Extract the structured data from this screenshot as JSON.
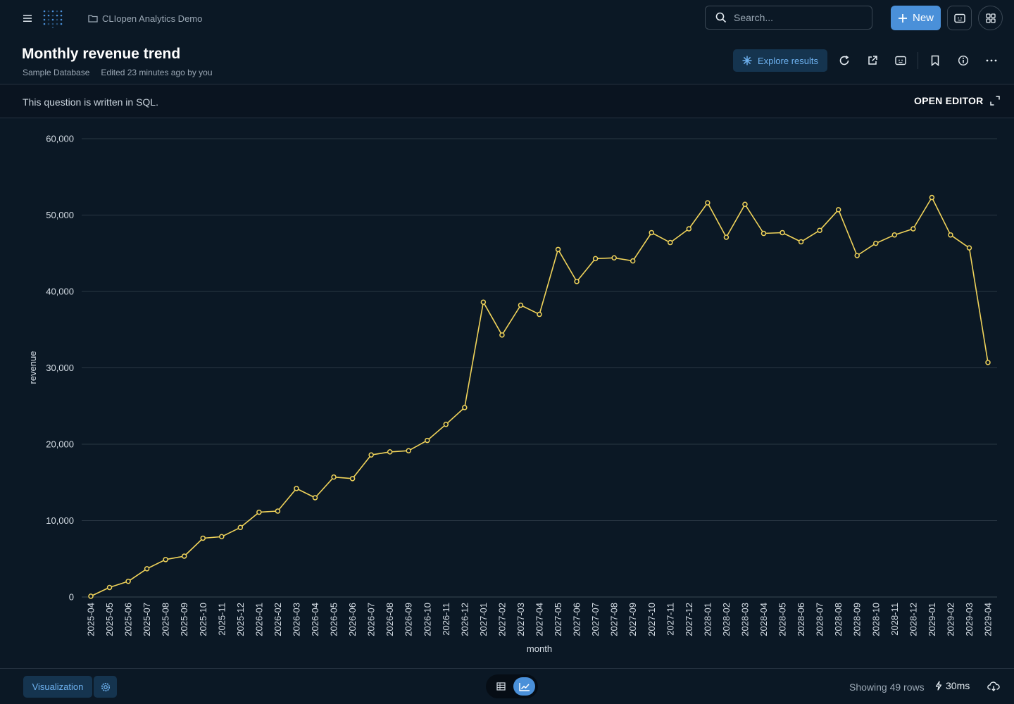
{
  "topbar": {
    "collection": "CLIopen Analytics Demo",
    "search_placeholder": "Search...",
    "new_label": "New"
  },
  "header": {
    "title": "Monthly revenue trend",
    "database": "Sample Database",
    "edited": "Edited 23 minutes ago by you",
    "explore_label": "Explore results"
  },
  "sql_bar": {
    "message": "This question is written in SQL.",
    "open_editor": "OPEN EDITOR"
  },
  "footer": {
    "visualization_label": "Visualization",
    "rows_text": "Showing 49 rows",
    "timing": "30ms"
  },
  "colors": {
    "line": "#f0d35a",
    "accent": "#4a90d9",
    "background": "#0b1825"
  },
  "chart_data": {
    "type": "line",
    "xlabel": "month",
    "ylabel": "revenue",
    "ylim": [
      0,
      60000
    ],
    "yticks": [
      0,
      10000,
      20000,
      30000,
      40000,
      50000,
      60000
    ],
    "ytick_labels": [
      "0",
      "10,000",
      "20,000",
      "30,000",
      "40,000",
      "50,000",
      "60,000"
    ],
    "grid": true,
    "categories": [
      "2025-04",
      "2025-05",
      "2025-06",
      "2025-07",
      "2025-08",
      "2025-09",
      "2025-10",
      "2025-11",
      "2025-12",
      "2026-01",
      "2026-02",
      "2026-03",
      "2026-04",
      "2026-05",
      "2026-06",
      "2026-07",
      "2026-08",
      "2026-09",
      "2026-10",
      "2026-11",
      "2026-12",
      "2027-01",
      "2027-02",
      "2027-03",
      "2027-04",
      "2027-05",
      "2027-06",
      "2027-07",
      "2027-08",
      "2027-09",
      "2027-10",
      "2027-11",
      "2027-12",
      "2028-01",
      "2028-02",
      "2028-03",
      "2028-04",
      "2028-05",
      "2028-06",
      "2028-07",
      "2028-08",
      "2028-09",
      "2028-10",
      "2028-11",
      "2028-12",
      "2029-01",
      "2029-02",
      "2029-03",
      "2029-04"
    ],
    "series": [
      {
        "values": [
          100,
          1250,
          2050,
          3700,
          4900,
          5350,
          7700,
          7900,
          9100,
          11100,
          11250,
          14200,
          13000,
          15700,
          15500,
          18600,
          19000,
          19150,
          20500,
          22600,
          24800,
          38600,
          34300,
          38200,
          37000,
          45500,
          41300,
          44300,
          44400,
          44000,
          47700,
          46400,
          48200,
          51600,
          47100,
          51400,
          47600,
          47700,
          46500,
          48000,
          50700,
          44700,
          46300,
          47400,
          48200,
          52300,
          47400,
          45700,
          30700
        ]
      }
    ]
  }
}
